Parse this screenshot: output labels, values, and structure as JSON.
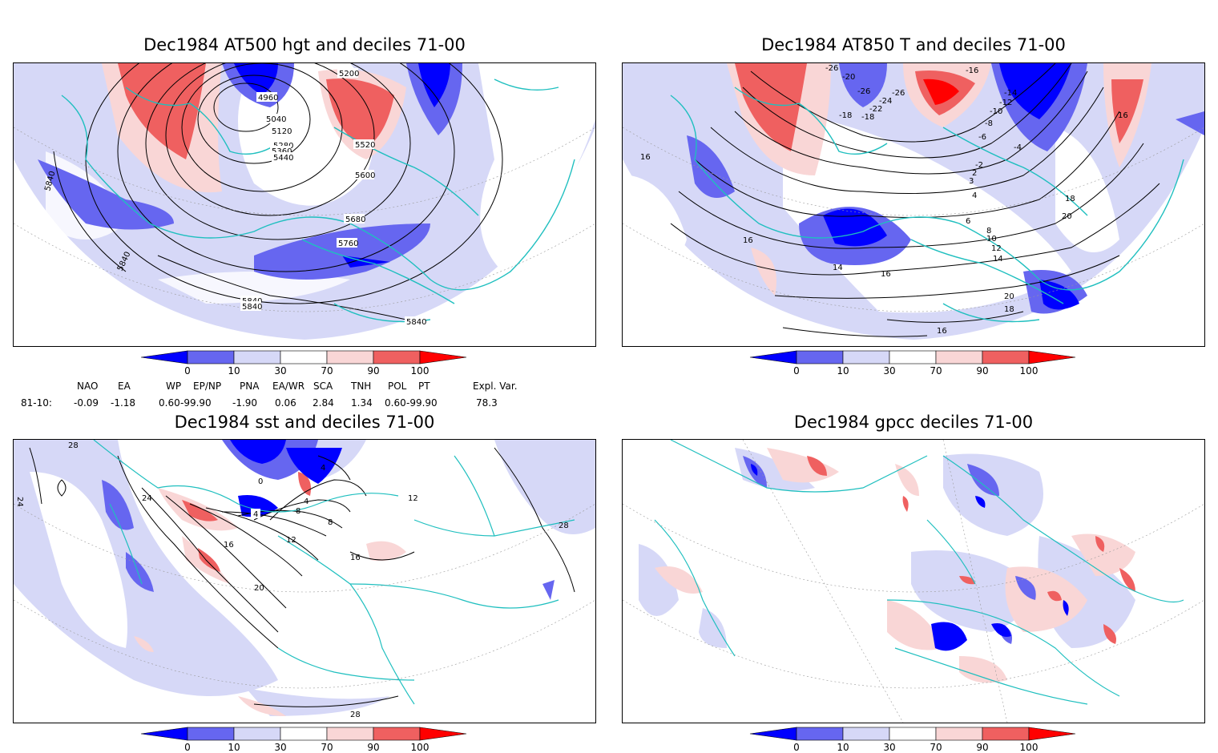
{
  "panels": [
    {
      "id": "p1",
      "title": "Dec1984 AT500 hgt and deciles 71-00",
      "contour_labels": [
        "4960",
        "5040",
        "5120",
        "5200",
        "5280",
        "5360",
        "5440",
        "5520",
        "5600",
        "5680",
        "5760",
        "5840",
        "5840",
        "5840",
        "5840",
        "5840"
      ]
    },
    {
      "id": "p2",
      "title": "Dec1984 AT850 T and deciles 71-00",
      "contour_labels": [
        "-26",
        "-26",
        "-26",
        "-24",
        "-22",
        "-20",
        "-18",
        "-18",
        "-16",
        "-14",
        "-12",
        "-10",
        "-8",
        "-6",
        "-4",
        "-2",
        "2",
        "3",
        "4",
        "6",
        "8",
        "10",
        "12",
        "14",
        "14",
        "16",
        "16",
        "16",
        "16",
        "16",
        "18",
        "18",
        "20",
        "20"
      ]
    },
    {
      "id": "p3",
      "title": "Dec1984 sst and deciles 71-00",
      "contour_labels": [
        "28",
        "24",
        "24",
        "0",
        "4",
        "4",
        "8",
        "12",
        "16",
        "16",
        "20",
        "28",
        "4",
        "8",
        "12",
        "28"
      ]
    },
    {
      "id": "p4",
      "title": "Dec1984 gpcc deciles 71-00",
      "contour_labels": []
    }
  ],
  "colorbar": {
    "ticks": [
      "0",
      "10",
      "30",
      "70",
      "90",
      "100"
    ],
    "colors": {
      "deep_blue": "#0000ff",
      "mid_blue": "#6666f0",
      "light_blue": "#d6d8f7",
      "white": "#ffffff",
      "light_red": "#f9d6d6",
      "mid_red": "#ef6060",
      "deep_red": "#ff0000"
    }
  },
  "indices": {
    "headers": [
      "NAO",
      "EA",
      "WP",
      "EP/NP",
      "PNA",
      "EA/WR",
      "SCA",
      "TNH",
      "POL",
      "PT",
      "Expl. Var."
    ],
    "row_label": "81-10:",
    "values": [
      "-0.09",
      "-1.18",
      "0.60",
      "-99.90",
      "-1.90",
      "0.06",
      "2.84",
      "1.34",
      "0.60",
      "-99.90",
      "78.3"
    ]
  },
  "map_style": {
    "coast_color": "#1fbfbf",
    "contour_color": "#000000"
  }
}
